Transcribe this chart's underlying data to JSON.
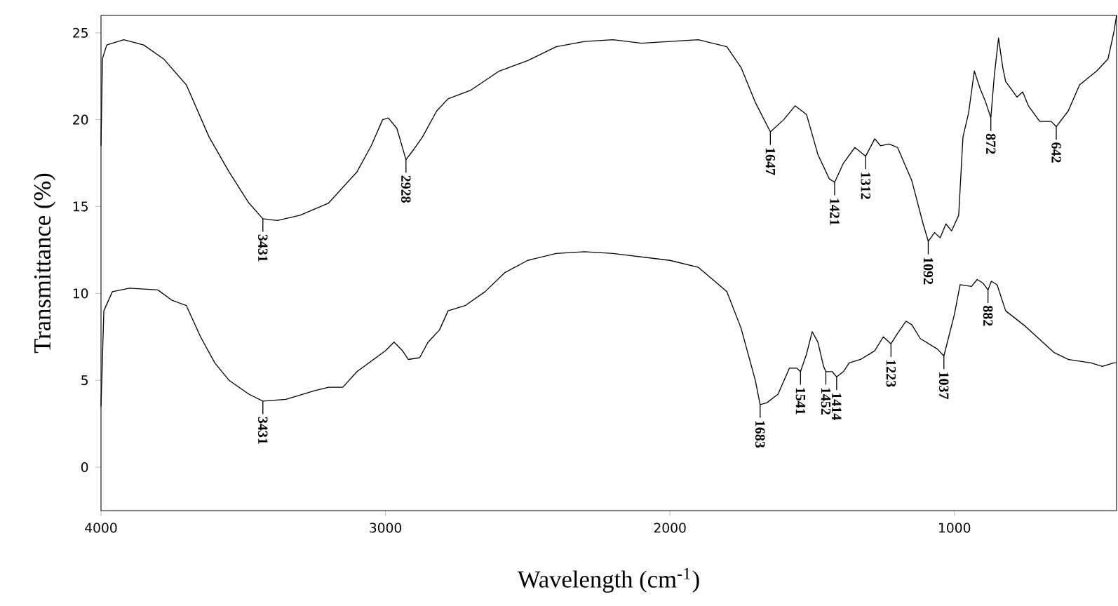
{
  "chart_data": {
    "type": "line",
    "xlabel": "Wavelength (cm$^{-1}$)",
    "ylabel": "Transmittance (%)",
    "xlim": [
      4000,
      430
    ],
    "ylim": [
      -2.5,
      26
    ],
    "xticks": [
      4000,
      3000,
      2000,
      1000
    ],
    "yticks": [
      0,
      5,
      10,
      15,
      20,
      25
    ],
    "grid": false,
    "marker": "none",
    "line_style": "solid",
    "series": [
      {
        "color": "#000000",
        "x": [
          4000,
          3995,
          3980,
          3920,
          3850,
          3780,
          3700,
          3620,
          3550,
          3480,
          3431,
          3380,
          3300,
          3200,
          3100,
          3050,
          3010,
          2990,
          2960,
          2928,
          2900,
          2870,
          2820,
          2780,
          2700,
          2600,
          2500,
          2400,
          2300,
          2200,
          2100,
          2000,
          1900,
          1800,
          1750,
          1700,
          1647,
          1600,
          1560,
          1520,
          1480,
          1440,
          1421,
          1390,
          1350,
          1312,
          1280,
          1260,
          1230,
          1200,
          1150,
          1110,
          1092,
          1070,
          1050,
          1030,
          1010,
          985,
          970,
          950,
          930,
          910,
          890,
          872,
          860,
          845,
          830,
          820,
          780,
          760,
          740,
          700,
          660,
          642,
          600,
          560,
          500,
          460,
          440,
          430
        ],
        "values": [
          18.5,
          23.5,
          24.3,
          24.6,
          24.3,
          23.5,
          22,
          19,
          17,
          15.2,
          14.3,
          14.2,
          14.5,
          15.2,
          17,
          18.5,
          20,
          20.1,
          19.5,
          17.7,
          18.3,
          19,
          20.5,
          21.2,
          21.7,
          22.8,
          23.4,
          24.2,
          24.5,
          24.6,
          24.4,
          24.5,
          24.6,
          24.2,
          23,
          21,
          19.3,
          20,
          20.8,
          20.3,
          18,
          16.6,
          16.4,
          17.5,
          18.4,
          17.9,
          18.9,
          18.5,
          18.6,
          18.4,
          16.5,
          14,
          13,
          13.5,
          13.2,
          14,
          13.6,
          14.5,
          19,
          20.4,
          22.8,
          21.8,
          21,
          20.1,
          22.5,
          24.7,
          23,
          22.2,
          21.3,
          21.6,
          20.8,
          19.9,
          19.9,
          19.6,
          20.5,
          22,
          22.8,
          23.5,
          25,
          26
        ]
      },
      {
        "color": "#000000",
        "x": [
          4000,
          3990,
          3960,
          3900,
          3800,
          3750,
          3700,
          3650,
          3600,
          3550,
          3480,
          3431,
          3350,
          3250,
          3200,
          3150,
          3100,
          3000,
          2970,
          2940,
          2920,
          2880,
          2850,
          2810,
          2780,
          2720,
          2650,
          2580,
          2500,
          2400,
          2300,
          2200,
          2100,
          2000,
          1900,
          1800,
          1750,
          1700,
          1683,
          1660,
          1620,
          1580,
          1555,
          1541,
          1520,
          1500,
          1480,
          1460,
          1452,
          1430,
          1414,
          1390,
          1370,
          1330,
          1280,
          1250,
          1223,
          1200,
          1170,
          1150,
          1120,
          1080,
          1060,
          1037,
          1000,
          980,
          940,
          920,
          900,
          882,
          870,
          850,
          820,
          750,
          650,
          600,
          520,
          480,
          440,
          430
        ],
        "values": [
          3.5,
          9,
          10.1,
          10.3,
          10.2,
          9.6,
          9.3,
          7.5,
          6,
          5,
          4.2,
          3.8,
          3.9,
          4.4,
          4.6,
          4.6,
          5.5,
          6.7,
          7.2,
          6.7,
          6.2,
          6.3,
          7.2,
          7.9,
          9,
          9.3,
          10.1,
          11.2,
          11.9,
          12.3,
          12.4,
          12.3,
          12.1,
          11.9,
          11.5,
          10.1,
          8,
          5,
          3.6,
          3.7,
          4.2,
          5.7,
          5.7,
          5.5,
          6.5,
          7.8,
          7.2,
          5.8,
          5.5,
          5.5,
          5.2,
          5.5,
          6,
          6.2,
          6.7,
          7.5,
          7.1,
          7.7,
          8.4,
          8.2,
          7.4,
          7,
          6.8,
          6.4,
          8.8,
          10.5,
          10.4,
          10.8,
          10.6,
          10.2,
          10.7,
          10.5,
          9,
          8.1,
          6.6,
          6.2,
          6,
          5.8,
          6,
          6
        ]
      }
    ],
    "annotations": [
      {
        "text": "3431",
        "x": 3431,
        "y": 14.3
      },
      {
        "text": "2928",
        "x": 2928,
        "y": 17.7
      },
      {
        "text": "1647",
        "x": 1647,
        "y": 19.3
      },
      {
        "text": "1421",
        "x": 1421,
        "y": 16.4
      },
      {
        "text": "1312",
        "x": 1312,
        "y": 17.9
      },
      {
        "text": "1092",
        "x": 1092,
        "y": 13
      },
      {
        "text": "872",
        "x": 872,
        "y": 20.1
      },
      {
        "text": "642",
        "x": 642,
        "y": 19.6
      },
      {
        "text": "3431",
        "x": 3431,
        "y": 3.8
      },
      {
        "text": "1683",
        "x": 1683,
        "y": 3.6
      },
      {
        "text": "1541",
        "x": 1541,
        "y": 5.5
      },
      {
        "text": "1452",
        "x": 1452,
        "y": 5.5
      },
      {
        "text": "1414",
        "x": 1414,
        "y": 5.2
      },
      {
        "text": "1223",
        "x": 1223,
        "y": 7.1
      },
      {
        "text": "1037",
        "x": 1037,
        "y": 6.4
      },
      {
        "text": "882",
        "x": 882,
        "y": 10.2
      }
    ]
  }
}
